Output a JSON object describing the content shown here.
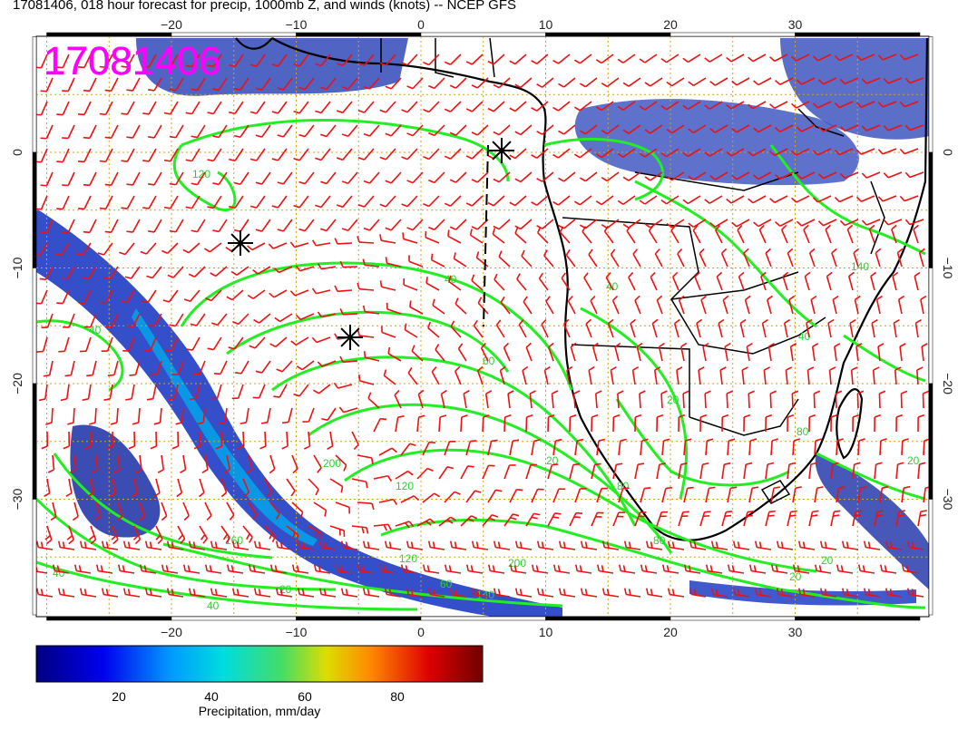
{
  "title": "17081406, 018 hour forecast for precip, 1000mb Z, and winds (knots) -- NCEP GFS",
  "stamp": "17081406",
  "colors": {
    "stamp": "#ff00ff",
    "contour": "#22ee22",
    "contour_label": "#33cc33",
    "barb": "#ee1111",
    "grid": "#d4a017",
    "coast": "#000000"
  },
  "x_ticks": [
    "−20",
    "−10",
    "0",
    "10",
    "20",
    "30"
  ],
  "y_ticks": [
    "0",
    "−10",
    "−20",
    "−30"
  ],
  "contour_labels": [
    "120",
    "40",
    "40",
    "60",
    "40",
    "20",
    "80",
    "20",
    "80",
    "20",
    "120",
    "200",
    "80",
    "160",
    "120",
    "40",
    "20",
    "40",
    "20",
    "140",
    "40",
    "20",
    "200",
    "60",
    "140"
  ],
  "colorbar": {
    "ticks": [
      "20",
      "40",
      "60",
      "80"
    ],
    "label": "Precipitation, mm/day"
  },
  "markers": {
    "highs": [
      "star",
      "star",
      "star"
    ]
  }
}
